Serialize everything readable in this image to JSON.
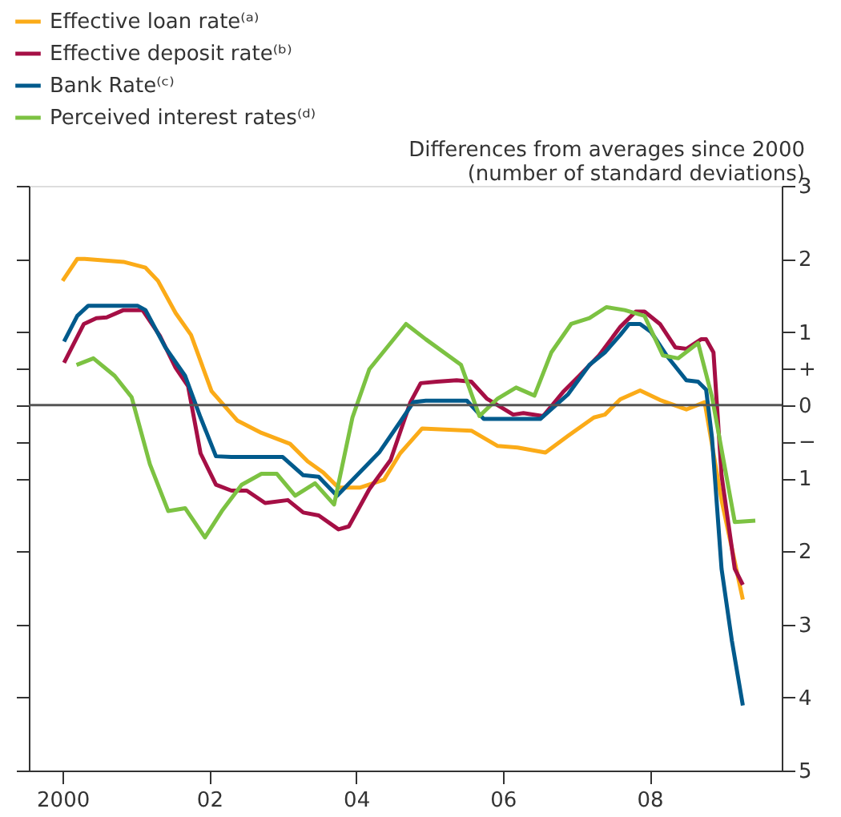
{
  "chart_data": {
    "type": "line",
    "ylabel": "Differences from averages since 2000\n(number of standard deviations)",
    "xlim": [
      1999.54,
      2009.8
    ],
    "ylim": [
      -5,
      3
    ],
    "xticks": [
      {
        "value": 2000,
        "label": "2000"
      },
      {
        "value": 2002,
        "label": "02"
      },
      {
        "value": 2004,
        "label": "04"
      },
      {
        "value": 2006,
        "label": "06"
      },
      {
        "value": 2008,
        "label": "08"
      }
    ],
    "yticks": [
      {
        "value": 3,
        "label": "3"
      },
      {
        "value": 2,
        "label": "2"
      },
      {
        "value": 1,
        "label": "1"
      },
      {
        "value": 0.5,
        "label": "+"
      },
      {
        "value": 0,
        "label": "0"
      },
      {
        "value": -0.5,
        "label": "−"
      },
      {
        "value": -1,
        "label": "1"
      },
      {
        "value": -2,
        "label": "2"
      },
      {
        "value": -3,
        "label": "3"
      },
      {
        "value": -4,
        "label": "4"
      },
      {
        "value": -5,
        "label": "5"
      }
    ],
    "grid": false,
    "legend": "top left",
    "marker": "none",
    "line_style": "solid",
    "ref_lines": [
      {
        "axis": "y",
        "value": 0,
        "color": "#555555"
      }
    ],
    "series": [
      {
        "name": "Effective loan rate⁽ᵃ⁾",
        "color": "#fbab18",
        "x": [
          2000.0,
          2000.2,
          2000.3,
          2000.83,
          2001.13,
          2001.3,
          2001.54,
          2001.75,
          2002.03,
          2002.38,
          2002.71,
          2003.1,
          2003.34,
          2003.55,
          2003.76,
          2004.05,
          2004.38,
          2004.6,
          2004.9,
          2005.57,
          2005.93,
          2006.2,
          2006.58,
          2006.89,
          2007.24,
          2007.39,
          2007.6,
          2007.87,
          2008.14,
          2008.5,
          2008.75,
          2008.98,
          2009.27
        ],
        "values": [
          1.7,
          2.0,
          2.0,
          1.96,
          1.88,
          1.7,
          1.26,
          0.96,
          0.19,
          -0.21,
          -0.38,
          -0.53,
          -0.77,
          -0.92,
          -1.13,
          -1.13,
          -1.02,
          -0.66,
          -0.32,
          -0.35,
          -0.56,
          -0.58,
          -0.65,
          -0.42,
          -0.17,
          -0.13,
          0.08,
          0.2,
          0.07,
          -0.06,
          0.04,
          -1.3,
          -2.66
        ]
      },
      {
        "name": "Effective deposit rate⁽ᵇ⁾",
        "color": "#a50f45",
        "x": [
          2000.02,
          2000.29,
          2000.46,
          2000.6,
          2000.83,
          2001.09,
          2001.33,
          2001.54,
          2001.71,
          2001.88,
          2002.09,
          2002.3,
          2002.51,
          2002.76,
          2003.07,
          2003.28,
          2003.49,
          2003.76,
          2003.9,
          2004.18,
          2004.47,
          2004.74,
          2004.88,
          2005.1,
          2005.37,
          2005.57,
          2005.78,
          2006.14,
          2006.28,
          2006.55,
          2006.83,
          2007.04,
          2007.31,
          2007.6,
          2007.81,
          2007.93,
          2008.14,
          2008.35,
          2008.5,
          2008.7,
          2008.77,
          2008.87,
          2008.98,
          2009.16,
          2009.27
        ],
        "values": [
          0.58,
          1.11,
          1.19,
          1.2,
          1.3,
          1.3,
          0.94,
          0.51,
          0.26,
          -0.66,
          -1.09,
          -1.17,
          -1.17,
          -1.34,
          -1.3,
          -1.47,
          -1.51,
          -1.7,
          -1.66,
          -1.15,
          -0.75,
          0.04,
          0.3,
          0.32,
          0.34,
          0.32,
          0.09,
          -0.13,
          -0.11,
          -0.15,
          0.19,
          0.4,
          0.68,
          1.07,
          1.28,
          1.28,
          1.11,
          0.79,
          0.77,
          0.9,
          0.9,
          0.72,
          -0.96,
          -2.24,
          -2.46
        ]
      },
      {
        "name": "Bank Rate⁽ᶜ⁾",
        "color": "#005a8c",
        "x": [
          2000.02,
          2000.2,
          2000.35,
          2001.02,
          2001.13,
          2001.4,
          2001.67,
          2001.88,
          2002.09,
          2002.3,
          2003.0,
          2003.28,
          2003.49,
          2003.74,
          2004.05,
          2004.32,
          2004.6,
          2004.78,
          2004.95,
          2005.51,
          2005.74,
          2006.51,
          2006.89,
          2007.18,
          2007.39,
          2007.6,
          2007.72,
          2007.87,
          2008.02,
          2008.23,
          2008.5,
          2008.66,
          2008.77,
          2008.85,
          2008.98,
          2009.12,
          2009.27
        ],
        "values": [
          0.87,
          1.22,
          1.36,
          1.36,
          1.3,
          0.79,
          0.4,
          -0.17,
          -0.7,
          -0.71,
          -0.71,
          -0.96,
          -0.98,
          -1.24,
          -0.92,
          -0.64,
          -0.23,
          0.04,
          0.06,
          0.06,
          -0.19,
          -0.19,
          0.15,
          0.55,
          0.72,
          0.96,
          1.11,
          1.11,
          1.0,
          0.68,
          0.34,
          0.32,
          0.21,
          -0.45,
          -2.24,
          -3.22,
          -4.11
        ]
      },
      {
        "name": "Perceived interest rates⁽ᵈ⁾",
        "color": "#7cc242",
        "x": [
          2000.19,
          2000.42,
          2000.71,
          2000.94,
          2001.19,
          2001.44,
          2001.67,
          2001.94,
          2002.17,
          2002.44,
          2002.71,
          2002.92,
          2003.17,
          2003.44,
          2003.7,
          2003.95,
          2004.18,
          2004.68,
          2004.95,
          2005.43,
          2005.68,
          2005.93,
          2006.18,
          2006.43,
          2006.66,
          2006.93,
          2007.18,
          2007.41,
          2007.66,
          2007.93,
          2008.18,
          2008.39,
          2008.66,
          2008.85,
          2009.16,
          2009.44
        ],
        "values": [
          0.55,
          0.64,
          0.4,
          0.11,
          -0.81,
          -1.45,
          -1.41,
          -1.81,
          -1.45,
          -1.09,
          -0.94,
          -0.94,
          -1.24,
          -1.07,
          -1.36,
          -0.17,
          0.49,
          1.11,
          0.9,
          0.55,
          -0.15,
          0.09,
          0.24,
          0.13,
          0.72,
          1.11,
          1.19,
          1.34,
          1.3,
          1.22,
          0.68,
          0.64,
          0.85,
          0.11,
          -1.6,
          -1.58
        ]
      }
    ]
  }
}
